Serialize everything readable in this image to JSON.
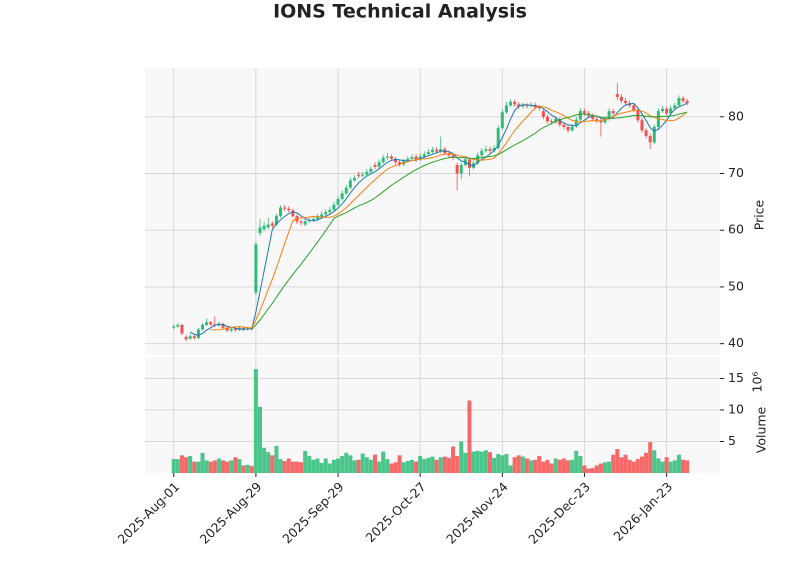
{
  "chart_data": {
    "type": "candlestick",
    "title": "IONS Technical Analysis",
    "categories": [
      "2025-Aug-01",
      null,
      null,
      null,
      null,
      null,
      null,
      null,
      null,
      null,
      null,
      null,
      null,
      null,
      null,
      null,
      null,
      null,
      null,
      null,
      "2025-Aug-29",
      null,
      null,
      null,
      null,
      null,
      null,
      null,
      null,
      null,
      null,
      null,
      null,
      null,
      null,
      null,
      null,
      null,
      null,
      null,
      "2025-Sep-29",
      null,
      null,
      null,
      null,
      null,
      null,
      null,
      null,
      null,
      null,
      null,
      null,
      null,
      null,
      null,
      null,
      null,
      null,
      null,
      "2025-Oct-27",
      null,
      null,
      null,
      null,
      null,
      null,
      null,
      null,
      null,
      null,
      null,
      null,
      null,
      null,
      null,
      null,
      null,
      null,
      null,
      "2025-Nov-24",
      null,
      null,
      null,
      null,
      null,
      null,
      null,
      null,
      null,
      null,
      null,
      null,
      null,
      null,
      null,
      null,
      null,
      null,
      null,
      "2025-Dec-23",
      null,
      null,
      null,
      null,
      null,
      null,
      null,
      null,
      null,
      null,
      null,
      null,
      null,
      null,
      null,
      null,
      null,
      null,
      null,
      "2026-Jan-23",
      null,
      null,
      null,
      null,
      null
    ],
    "open": [
      42.8,
      43.0,
      43.3,
      41.2,
      40.9,
      41.3,
      41.0,
      42.5,
      43.3,
      43.8,
      43.4,
      43.2,
      43.5,
      42.8,
      42.3,
      42.6,
      42.4,
      42.8,
      42.5,
      42.7,
      49.0,
      59.5,
      60.2,
      60.5,
      61.2,
      61.0,
      62.5,
      64.0,
      63.8,
      63.5,
      62.5,
      61.5,
      61.0,
      61.6,
      61.8,
      62.0,
      62.4,
      62.8,
      63.2,
      63.6,
      64.5,
      65.5,
      66.5,
      67.5,
      68.8,
      69.8,
      69.6,
      69.8,
      70.3,
      71.5,
      71.2,
      72.0,
      72.8,
      73.0,
      72.6,
      72.0,
      71.6,
      72.2,
      72.6,
      73.0,
      72.5,
      73.0,
      73.4,
      73.8,
      74.2,
      73.9,
      74.3,
      73.6,
      73.2,
      71.5,
      70.0,
      71.5,
      72.5,
      71.0,
      71.8,
      73.2,
      74.0,
      74.3,
      74.0,
      74.5,
      78.0,
      80.8,
      82.0,
      82.6,
      82.2,
      81.8,
      82.0,
      81.9,
      82.1,
      81.7,
      81.0,
      80.0,
      79.2,
      79.0,
      79.6,
      78.6,
      78.2,
      77.6,
      78.3,
      79.5,
      81.0,
      80.6,
      80.2,
      79.6,
      79.3,
      79.0,
      79.6,
      81.0,
      84.0,
      83.5,
      82.8,
      82.4,
      82.0,
      81.2,
      79.4,
      77.6,
      76.6,
      75.5,
      78.2,
      81.0,
      81.4,
      80.6,
      81.5,
      82.0,
      83.3,
      82.8
    ],
    "high": [
      43.4,
      43.7,
      43.5,
      41.5,
      41.7,
      41.6,
      42.8,
      43.6,
      44.4,
      44.0,
      44.8,
      43.9,
      43.7,
      43.0,
      42.9,
      42.9,
      43.1,
      43.0,
      43.0,
      43.0,
      58.0,
      62.0,
      61.5,
      62.2,
      61.6,
      62.9,
      64.4,
      64.4,
      64.2,
      63.8,
      62.8,
      61.9,
      62.0,
      62.3,
      62.5,
      62.9,
      63.3,
      63.7,
      64.1,
      65.0,
      66.0,
      67.0,
      68.0,
      69.3,
      69.7,
      70.3,
      70.3,
      70.8,
      71.3,
      72.0,
      72.5,
      73.3,
      73.6,
      73.4,
      72.9,
      72.4,
      72.6,
      73.0,
      73.4,
      73.4,
      73.5,
      73.9,
      74.3,
      74.7,
      74.6,
      76.5,
      74.7,
      74.0,
      73.6,
      71.9,
      71.9,
      73.0,
      72.8,
      72.3,
      73.7,
      74.5,
      74.9,
      74.8,
      75.0,
      78.5,
      81.3,
      82.6,
      83.1,
      83.0,
      82.6,
      82.5,
      82.4,
      82.6,
      82.5,
      82.1,
      81.4,
      80.4,
      79.6,
      80.1,
      79.9,
      79.0,
      78.5,
      78.8,
      80.0,
      81.5,
      81.4,
      81.0,
      80.6,
      80.0,
      79.7,
      80.1,
      81.5,
      81.4,
      86.0,
      84.0,
      83.3,
      82.9,
      82.4,
      81.6,
      79.8,
      78.0,
      77.0,
      78.6,
      81.5,
      81.9,
      81.8,
      82.0,
      82.5,
      83.8,
      83.7,
      83.2
    ],
    "low": [
      42.5,
      42.8,
      41.5,
      40.4,
      40.7,
      40.7,
      40.8,
      42.3,
      43.1,
      43.1,
      42.9,
      43.0,
      42.5,
      42.0,
      42.0,
      42.1,
      42.2,
      42.2,
      42.3,
      42.3,
      48.5,
      59.0,
      59.8,
      60.2,
      60.4,
      60.8,
      62.2,
      63.4,
      63.1,
      62.2,
      61.1,
      60.9,
      60.7,
      61.3,
      61.5,
      61.7,
      62.1,
      62.5,
      62.9,
      63.3,
      64.2,
      65.2,
      66.2,
      67.2,
      68.5,
      69.2,
      69.3,
      69.5,
      70.0,
      70.8,
      70.9,
      71.7,
      72.4,
      72.2,
      71.6,
      71.2,
      71.3,
      71.9,
      72.3,
      72.1,
      72.2,
      72.7,
      73.1,
      73.5,
      73.5,
      73.6,
      73.2,
      72.8,
      72.4,
      67.0,
      69.0,
      71.2,
      69.5,
      70.7,
      71.5,
      72.9,
      73.7,
      73.6,
      73.7,
      74.2,
      77.7,
      80.5,
      81.7,
      81.8,
      81.4,
      81.5,
      81.5,
      81.6,
      81.3,
      81.1,
      79.6,
      78.8,
      78.6,
      78.7,
      78.2,
      77.8,
      77.2,
      77.3,
      78.0,
      79.2,
      80.2,
      79.8,
      79.2,
      78.9,
      76.5,
      78.7,
      79.3,
      80.2,
      83.0,
      82.4,
      82.0,
      81.6,
      80.8,
      79.0,
      77.2,
      76.2,
      74.3,
      75.2,
      77.9,
      80.7,
      80.2,
      80.3,
      81.2,
      81.7,
      82.4,
      82.0
    ],
    "close": [
      43.0,
      43.3,
      41.8,
      40.8,
      41.3,
      41.0,
      42.5,
      43.3,
      43.8,
      43.4,
      43.2,
      43.5,
      42.8,
      42.3,
      42.6,
      42.4,
      42.8,
      42.5,
      42.7,
      42.6,
      57.5,
      60.5,
      60.8,
      61.0,
      60.8,
      62.5,
      64.0,
      63.8,
      63.5,
      62.5,
      61.5,
      61.3,
      61.6,
      61.8,
      62.0,
      62.4,
      62.8,
      63.2,
      63.6,
      64.5,
      65.5,
      66.5,
      67.5,
      68.8,
      69.2,
      69.6,
      69.8,
      70.3,
      70.8,
      71.2,
      72.0,
      72.8,
      73.0,
      72.6,
      72.0,
      71.6,
      72.2,
      72.6,
      72.9,
      72.5,
      73.0,
      73.4,
      73.8,
      74.2,
      73.9,
      74.3,
      73.6,
      73.2,
      72.8,
      70.0,
      71.5,
      72.5,
      71.0,
      71.8,
      73.2,
      74.0,
      74.3,
      74.0,
      74.5,
      78.0,
      80.8,
      82.0,
      82.6,
      82.2,
      81.8,
      82.0,
      81.9,
      82.1,
      81.7,
      81.5,
      80.0,
      79.2,
      79.0,
      79.6,
      78.6,
      78.2,
      77.6,
      78.3,
      79.5,
      81.0,
      80.6,
      80.2,
      79.6,
      79.3,
      79.0,
      79.6,
      81.0,
      80.6,
      83.5,
      82.8,
      82.4,
      82.0,
      81.2,
      79.4,
      77.6,
      76.6,
      75.5,
      78.2,
      81.0,
      81.4,
      80.6,
      81.5,
      82.0,
      83.3,
      82.8,
      82.4
    ],
    "volume": [
      2.2,
      2.2,
      2.8,
      2.5,
      2.7,
      1.8,
      1.8,
      3.2,
      2.0,
      1.8,
      2.0,
      2.3,
      2.0,
      1.8,
      2.0,
      2.5,
      2.2,
      1.2,
      1.3,
      1.1,
      16.5,
      10.5,
      4.0,
      3.3,
      2.8,
      4.3,
      2.2,
      1.9,
      2.3,
      1.8,
      1.8,
      1.7,
      3.5,
      2.7,
      2.1,
      2.3,
      1.6,
      2.3,
      1.5,
      2.1,
      2.3,
      2.7,
      3.2,
      2.8,
      2.0,
      2.1,
      3.1,
      2.5,
      2.1,
      2.9,
      1.8,
      3.4,
      2.2,
      1.5,
      1.7,
      2.8,
      1.7,
      1.9,
      2.1,
      1.8,
      2.7,
      2.2,
      2.4,
      2.6,
      2.1,
      2.5,
      2.6,
      2.4,
      4.2,
      2.7,
      5.0,
      3.2,
      11.5,
      3.4,
      3.5,
      3.4,
      3.6,
      3.3,
      2.4,
      3.0,
      2.8,
      3.0,
      1.2,
      2.5,
      2.8,
      2.6,
      2.3,
      2.0,
      2.1,
      2.7,
      1.8,
      2.1,
      1.5,
      2.3,
      2.1,
      2.3,
      2.0,
      2.1,
      3.5,
      2.7,
      1.2,
      0.7,
      0.8,
      1.2,
      1.5,
      1.7,
      1.8,
      2.9,
      3.8,
      2.5,
      2.9,
      2.1,
      1.8,
      2.2,
      2.6,
      3.2,
      4.9,
      3.6,
      2.3,
      1.8,
      2.5,
      1.8,
      2.0,
      2.9,
      2.1,
      2.0
    ],
    "moving_averages": [
      {
        "color": "#1f77b4",
        "values": [
          null,
          null,
          null,
          null,
          42.04,
          41.64,
          41.48,
          41.78,
          42.38,
          42.8,
          43.24,
          43.44,
          43.34,
          43.04,
          42.88,
          42.72,
          42.58,
          42.52,
          42.6,
          42.6,
          45.62,
          49.16,
          52.82,
          56.48,
          60.12,
          61.12,
          61.82,
          62.42,
          62.92,
          63.26,
          63.06,
          62.52,
          62.08,
          61.74,
          61.64,
          61.82,
          62.12,
          62.44,
          62.8,
          63.3,
          63.92,
          64.66,
          65.52,
          66.56,
          67.5,
          68.32,
          68.98,
          69.54,
          69.94,
          70.34,
          70.82,
          71.42,
          71.96,
          72.32,
          72.48,
          72.4,
          72.28,
          72.2,
          72.26,
          72.36,
          72.64,
          72.88,
          73.12,
          73.38,
          73.66,
          73.92,
          73.96,
          73.84,
          73.56,
          72.78,
          72.22,
          72.0,
          71.56,
          71.36,
          72.0,
          72.5,
          72.86,
          73.46,
          74.0,
          74.96,
          76.32,
          77.86,
          79.58,
          81.12,
          81.88,
          82.12,
          82.1,
          82.0,
          81.9,
          81.84,
          81.44,
          80.9,
          80.28,
          79.86,
          79.28,
          78.92,
          78.6,
          78.46,
          78.44,
          78.92,
          79.4,
          79.92,
          80.18,
          80.14,
          79.74,
          79.54,
          79.7,
          79.9,
          80.74,
          81.5,
          82.06,
          82.26,
          82.38,
          81.56,
          80.52,
          79.36,
          78.06,
          77.46,
          77.78,
          78.54,
          79.34,
          80.54,
          81.3,
          81.76,
          82.04,
          82.4
        ]
      },
      {
        "color": "#ff7f0e",
        "values": [
          null,
          null,
          null,
          null,
          null,
          null,
          null,
          null,
          null,
          42.42,
          42.44,
          42.46,
          42.56,
          42.71,
          42.84,
          42.98,
          43.01,
          42.93,
          42.82,
          42.74,
          44.17,
          45.87,
          47.67,
          49.54,
          51.36,
          53.37,
          55.49,
          57.62,
          59.7,
          61.69,
          62.09,
          62.17,
          62.25,
          62.33,
          62.45,
          62.44,
          62.32,
          62.26,
          62.27,
          62.47,
          62.87,
          63.39,
          63.98,
          64.68,
          65.4,
          66.12,
          66.82,
          67.53,
          68.25,
          68.92,
          69.57,
          70.2,
          70.75,
          71.13,
          71.41,
          71.61,
          71.85,
          72.08,
          72.29,
          72.42,
          72.52,
          72.58,
          72.66,
          72.82,
          73.01,
          73.28,
          73.42,
          73.48,
          73.47,
          73.22,
          73.07,
          72.98,
          72.7,
          72.46,
          72.39,
          72.36,
          72.43,
          72.51,
          72.68,
          73.48,
          74.41,
          75.36,
          76.52,
          77.56,
          78.42,
          79.22,
          79.98,
          80.79,
          81.51,
          81.86,
          81.78,
          81.5,
          81.14,
          80.88,
          80.56,
          80.18,
          79.75,
          79.37,
          79.15,
          79.1,
          79.16,
          79.26,
          79.32,
          79.29,
          79.33,
          79.47,
          79.81,
          80.04,
          80.44,
          80.62,
          80.8,
          80.98,
          81.14,
          81.15,
          81.01,
          80.71,
          80.16,
          79.92,
          79.67,
          79.53,
          79.35,
          79.3,
          79.38,
          79.77,
          80.29,
          80.87
        ]
      },
      {
        "color": "#2ca02c",
        "values": [
          null,
          null,
          null,
          null,
          null,
          null,
          null,
          null,
          null,
          null,
          null,
          null,
          null,
          null,
          null,
          null,
          null,
          null,
          null,
          42.58,
          43.31,
          44.17,
          45.12,
          46.13,
          47.1,
          48.18,
          49.25,
          50.28,
          51.26,
          52.22,
          53.13,
          54.02,
          54.96,
          55.94,
          56.91,
          57.91,
          58.91,
          59.94,
          60.99,
          62.08,
          62.48,
          62.78,
          63.12,
          63.51,
          63.93,
          64.28,
          64.57,
          64.9,
          65.26,
          65.7,
          66.22,
          66.8,
          67.37,
          67.91,
          68.41,
          68.87,
          69.34,
          69.81,
          70.27,
          70.67,
          71.05,
          71.39,
          71.71,
          71.98,
          72.21,
          72.45,
          72.64,
          72.78,
          72.88,
          72.82,
          72.8,
          72.78,
          72.68,
          72.64,
          72.7,
          72.82,
          72.93,
          73.0,
          73.08,
          73.35,
          73.74,
          74.17,
          74.61,
          75.01,
          75.41,
          75.79,
          76.21,
          76.65,
          77.1,
          77.67,
          78.1,
          78.43,
          78.83,
          79.22,
          79.49,
          79.7,
          79.87,
          80.08,
          80.33,
          80.48,
          80.47,
          80.38,
          80.23,
          80.09,
          79.95,
          79.83,
          79.78,
          79.71,
          79.8,
          79.86,
          79.98,
          80.12,
          80.23,
          80.22,
          80.17,
          80.09,
          79.99,
          79.98,
          80.06,
          80.08,
          80.08,
          80.14,
          80.26,
          80.46,
          80.65,
          80.79
        ]
      }
    ],
    "up_color": "#2dbd78",
    "down_color": "#f4504f",
    "xlim": [
      -7,
      133
    ],
    "ylim": [
      38,
      88.6
    ],
    "yticks": [
      40,
      50,
      60,
      70,
      80
    ],
    "ylabel": "Price",
    "volume_ylim": [
      0,
      18.4
    ],
    "volume_yticks": [
      5,
      10,
      15
    ],
    "volume_ylabel": "Volume",
    "volume_scale": "10⁶",
    "grid": true
  }
}
